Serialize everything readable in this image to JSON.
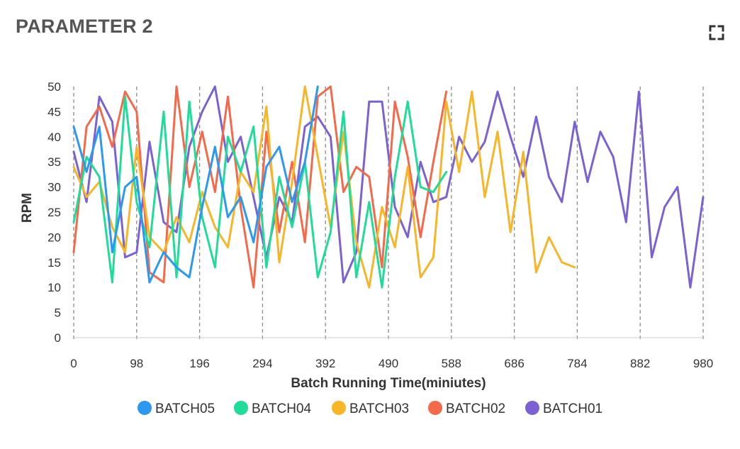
{
  "card": {
    "title": "PARAMETER 2",
    "expand_icon": "fullscreen-icon"
  },
  "chart_data": {
    "type": "line",
    "title": "PARAMETER 2",
    "xlabel": "Batch Running Time(miniutes)",
    "ylabel": "RPM",
    "xlim": [
      0,
      980
    ],
    "ylim": [
      0,
      50
    ],
    "x_ticks": [
      "0",
      "98",
      "196",
      "294",
      "392",
      "490",
      "588",
      "686",
      "784",
      "882",
      "980"
    ],
    "y_ticks": [
      "0",
      "5",
      "10",
      "15",
      "20",
      "25",
      "30",
      "35",
      "40",
      "45",
      "50"
    ],
    "grid": "vertical dashed",
    "legend_position": "bottom",
    "series": [
      {
        "name": "BATCH01",
        "color": "#7b61d2",
        "x": [
          0,
          20,
          40,
          60,
          80,
          98,
          118,
          140,
          160,
          180,
          200,
          220,
          240,
          260,
          280,
          300,
          320,
          340,
          360,
          380,
          400,
          420,
          440,
          460,
          480,
          500,
          520,
          540,
          560,
          580,
          600,
          620,
          640,
          660,
          680,
          700,
          720,
          740,
          760,
          780,
          800,
          820,
          840,
          860,
          880,
          900,
          920,
          940,
          960,
          980
        ],
        "values": [
          37,
          27,
          48,
          43,
          16,
          17,
          39,
          23,
          21,
          38,
          45,
          50,
          35,
          40,
          28,
          16,
          28,
          23,
          42,
          44,
          40,
          11,
          17,
          47,
          47,
          26,
          20,
          35,
          27,
          28,
          40,
          35,
          39,
          49,
          40,
          32,
          44,
          32,
          27,
          43,
          31,
          41,
          36,
          23,
          49,
          16,
          26,
          30,
          10,
          28
        ]
      },
      {
        "name": "BATCH02",
        "color": "#f4694a",
        "x": [
          0,
          20,
          40,
          60,
          80,
          98,
          118,
          140,
          160,
          180,
          200,
          220,
          240,
          260,
          280,
          300,
          320,
          340,
          360,
          380,
          400,
          420,
          440,
          460,
          480,
          500,
          520,
          540,
          560,
          580
        ],
        "values": [
          17,
          42,
          46,
          38,
          49,
          45,
          13,
          11,
          50,
          30,
          41,
          29,
          48,
          26,
          10,
          41,
          21,
          35,
          19,
          48,
          50,
          29,
          34,
          32,
          14,
          47,
          36,
          20,
          35,
          49
        ]
      },
      {
        "name": "BATCH03",
        "color": "#f7b528",
        "x": [
          0,
          20,
          40,
          60,
          80,
          98,
          118,
          140,
          160,
          180,
          200,
          220,
          240,
          260,
          280,
          300,
          320,
          340,
          360,
          380,
          400,
          420,
          440,
          460,
          480,
          500,
          520,
          540,
          560,
          580,
          600,
          620,
          640,
          660,
          680,
          700,
          720,
          740,
          760,
          780
        ],
        "values": [
          34,
          28,
          31,
          22,
          17,
          38,
          20,
          17,
          24,
          19,
          29,
          22,
          18,
          33,
          29,
          46,
          15,
          31,
          50,
          36,
          22,
          41,
          19,
          10,
          26,
          18,
          34,
          12,
          16,
          47,
          33,
          49,
          28,
          41,
          21,
          37,
          13,
          20,
          15,
          14
        ]
      },
      {
        "name": "BATCH04",
        "color": "#1fdc98",
        "x": [
          0,
          20,
          40,
          60,
          80,
          98,
          118,
          140,
          160,
          180,
          200,
          220,
          240,
          260,
          280,
          300,
          320,
          340,
          360,
          380,
          400,
          420,
          440,
          460,
          480,
          500,
          520,
          540,
          560,
          580
        ],
        "values": [
          23,
          36,
          32,
          11,
          48,
          27,
          18,
          45,
          12,
          47,
          24,
          14,
          40,
          33,
          42,
          14,
          32,
          22,
          35,
          12,
          21,
          45,
          12,
          27,
          10,
          32,
          47,
          30,
          29,
          33
        ]
      },
      {
        "name": "BATCH05",
        "color": "#2c98f0",
        "x": [
          0,
          20,
          40,
          60,
          80,
          98,
          118,
          140,
          160,
          180,
          200,
          220,
          240,
          260,
          280,
          300,
          320,
          340,
          360,
          380
        ],
        "values": [
          42,
          33,
          42,
          17,
          30,
          32,
          11,
          17,
          14,
          12,
          26,
          38,
          24,
          28,
          19,
          34,
          38,
          27,
          35,
          50
        ]
      }
    ]
  }
}
